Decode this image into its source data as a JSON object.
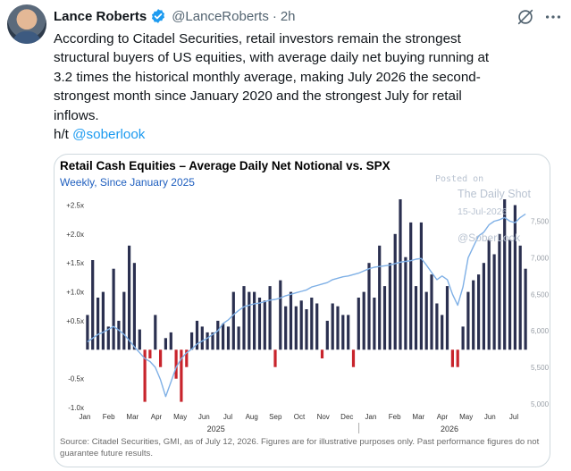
{
  "tweet": {
    "author_name": "Lance Roberts",
    "handle": "@LanceRoberts",
    "separator": "·",
    "time": "2h",
    "text_lines": [
      "According to Citadel Securities, retail investors remain the strongest",
      "structural buyers of US equities, with average daily net buying running at",
      "3.2 times the historical monthly average, making July 2026 the second-",
      "strongest month since January 2020 and the strongest July for retail",
      "inflows."
    ],
    "ht_label": "h/t",
    "ht_mention": "@soberlook",
    "icons": [
      "avatar",
      "verified-badge-icon",
      "grok-icon",
      "more-icon"
    ],
    "accent_color": "#1d9bf0"
  },
  "chart": {
    "title": "Retail Cash Equities – Average Daily Net Notional vs. SPX",
    "subtitle": "Weekly, Since January 2025",
    "watermark": {
      "posted_on": "Posted on",
      "brand": "The Daily Shot",
      "date": "15-Jul-2026",
      "handle": "@SoberLook"
    },
    "footnote": "Source: Citadel Securities, GMI, as of July 12, 2026. Figures are for illustrative purposes only. Past performance figures do not guarantee future results."
  },
  "chart_data": {
    "type": "bar",
    "title": "Retail Cash Equities – Average Daily Net Notional vs. SPX",
    "subtitle": "Weekly, Since January 2025",
    "y_left_ticks": [
      "+2.5x",
      "+2.0x",
      "+1.5x",
      "+1.0x",
      "+0.5x",
      "-0.5x",
      "-1.0x"
    ],
    "y_left_tick_values": [
      2.5,
      2.0,
      1.5,
      1.0,
      0.5,
      -0.5,
      -1.0
    ],
    "ylim_left": [
      -1.0,
      2.6
    ],
    "y_right_ticks": [
      "7,500",
      "7,000",
      "6,500",
      "6,000",
      "5,500",
      "5,000"
    ],
    "y_right_tick_values": [
      7500,
      7000,
      6500,
      6000,
      5500,
      5000
    ],
    "ylim_right": [
      4950,
      7800
    ],
    "x_month_labels": [
      "Jan",
      "Feb",
      "Mar",
      "Apr",
      "May",
      "Jun",
      "Jul",
      "Aug",
      "Sep",
      "Oct",
      "Nov",
      "Dec",
      "Jan",
      "Feb",
      "Mar",
      "Apr",
      "May",
      "Jun",
      "Jul"
    ],
    "year_labels": [
      "2025",
      "2026"
    ],
    "positive_color": "#2b3050",
    "negative_color": "#c8242c",
    "line_color": "#7fb0e6",
    "series": [
      {
        "kind": "bar",
        "values": [
          0.6,
          1.55,
          0.9,
          1.0,
          0.4,
          1.4,
          0.5,
          1.0,
          1.8,
          1.5,
          0.35,
          -0.9,
          -0.15,
          0.6,
          -0.3,
          0.2,
          0.3,
          -0.5,
          -0.9,
          -0.3,
          0.3,
          0.5,
          0.4,
          0.3,
          0.3,
          0.5,
          0.45,
          0.4,
          1.0,
          0.4,
          1.1,
          1.0,
          1.0,
          0.9,
          0.85,
          1.1,
          -0.3,
          1.2,
          0.75,
          1.0,
          0.75,
          0.85,
          0.7,
          0.9,
          0.8,
          -0.15,
          0.5,
          0.8,
          0.75,
          0.6,
          0.6,
          -0.3,
          0.9,
          1.0,
          1.5,
          0.9,
          1.8,
          1.1,
          1.5,
          2.0,
          2.6,
          1.6,
          2.2,
          1.1,
          2.2,
          1.0,
          1.3,
          0.8,
          0.6,
          1.1,
          -0.3,
          -0.3,
          0.4,
          1.0,
          1.2,
          1.3,
          1.5,
          1.9,
          1.65,
          2.0,
          2.6,
          1.9,
          2.5,
          1.8,
          1.4
        ]
      },
      {
        "kind": "line",
        "name": "SPX",
        "values": [
          5850,
          5900,
          5950,
          5980,
          6020,
          6060,
          6010,
          5950,
          5870,
          5780,
          5700,
          5620,
          5580,
          5500,
          5330,
          5100,
          5300,
          5500,
          5620,
          5700,
          5750,
          5820,
          5860,
          5900,
          5950,
          6000,
          6100,
          6150,
          6220,
          6280,
          6330,
          6350,
          6370,
          6380,
          6400,
          6420,
          6430,
          6450,
          6480,
          6500,
          6520,
          6540,
          6560,
          6600,
          6620,
          6640,
          6660,
          6700,
          6720,
          6740,
          6750,
          6770,
          6790,
          6820,
          6850,
          6870,
          6880,
          6890,
          6900,
          6920,
          6940,
          6950,
          6960,
          6980,
          6990,
          6900,
          6800,
          6700,
          6750,
          6700,
          6500,
          6350,
          6600,
          7000,
          7150,
          7300,
          7350,
          7450,
          7500,
          7520,
          7550,
          7500,
          7480,
          7550,
          7600
        ]
      }
    ],
    "legend": "none",
    "grid": false
  }
}
